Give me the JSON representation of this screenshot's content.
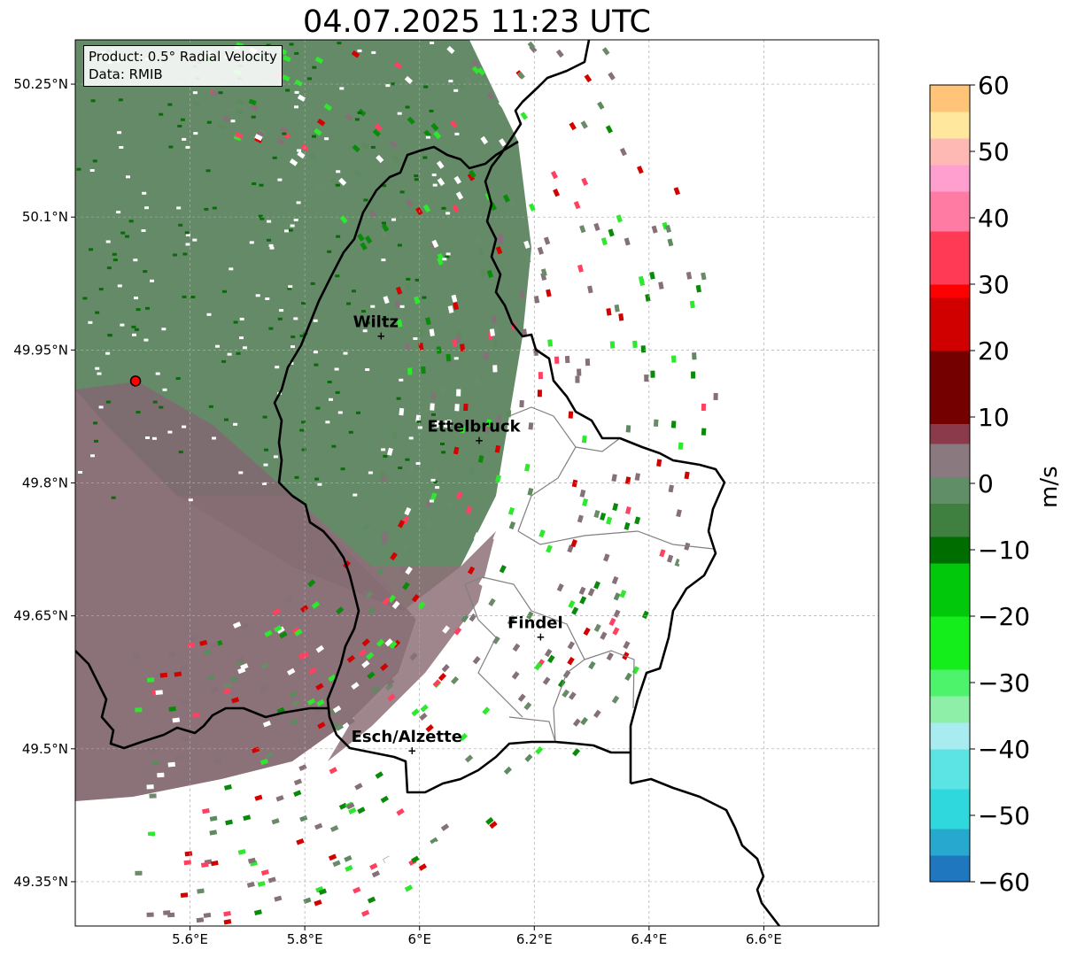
{
  "title": "04.07.2025 11:23 UTC",
  "info": {
    "product": "Product: 0.5° Radial Velocity",
    "source": "Data: RMIB"
  },
  "map": {
    "lon_range": [
      5.4,
      6.8
    ],
    "lat_range": [
      49.3,
      50.3
    ],
    "xticks": [
      5.6,
      5.8,
      6.0,
      6.2,
      6.4,
      6.6
    ],
    "xtick_labels": [
      "5.6°E",
      "5.8°E",
      "6°E",
      "6.2°E",
      "6.4°E",
      "6.6°E"
    ],
    "yticks": [
      50.25,
      50.1,
      49.95,
      49.8,
      49.65,
      49.5,
      49.35
    ],
    "ytick_labels": [
      "50.25°N",
      "50.1°N",
      "49.95°N",
      "49.8°N",
      "49.65°N",
      "49.5°N",
      "49.35°N"
    ],
    "radar_site": {
      "lon": 5.505,
      "lat": 49.915
    },
    "cities": [
      {
        "name": "Wiltz",
        "lon": 5.933,
        "lat": 49.966
      },
      {
        "name": "Ettelbruck",
        "lon": 6.104,
        "lat": 49.848
      },
      {
        "name": "Findel",
        "lon": 6.211,
        "lat": 49.626
      },
      {
        "name": "Esch/Alzette",
        "lon": 5.987,
        "lat": 49.498
      }
    ],
    "grid": true
  },
  "colorbar": {
    "unit": "m/s",
    "min": -60,
    "max": 60,
    "ticks": [
      60,
      50,
      40,
      30,
      20,
      10,
      0,
      -10,
      -20,
      -30,
      -40,
      -50,
      -60
    ],
    "tick_labels": [
      "60",
      "50",
      "40",
      "30",
      "20",
      "10",
      "0",
      "−10",
      "−20",
      "−30",
      "−40",
      "−50",
      "−60"
    ],
    "stops": [
      [
        "-60",
        "#1f77c0"
      ],
      [
        "-56",
        "#26a8cf"
      ],
      [
        "-52",
        "#2ed8dc"
      ],
      [
        "-46",
        "#5ce3e3"
      ],
      [
        "-40",
        "#a8ecef"
      ],
      [
        "-36",
        "#8ef0a8"
      ],
      [
        "-32",
        "#4df36a"
      ],
      [
        "-28",
        "#14ee1a"
      ],
      [
        "-20",
        "#02c80b"
      ],
      [
        "-12",
        "#006d00"
      ],
      [
        "-8",
        "#3f7f3f"
      ],
      [
        "-3",
        "#5f8e67"
      ],
      [
        "1",
        "#8a7a7f"
      ],
      [
        "6",
        "#8a3a4a"
      ],
      [
        "9",
        "#740000"
      ],
      [
        "20",
        "#d00000"
      ],
      [
        "28",
        "#ff0000"
      ],
      [
        "30",
        "#ff3a55"
      ],
      [
        "38",
        "#ff7ba3"
      ],
      [
        "44",
        "#ff9fcf"
      ],
      [
        "48",
        "#ffb9b4"
      ],
      [
        "52",
        "#ffe89e"
      ],
      [
        "56",
        "#ffc478"
      ],
      [
        "60",
        "#ff9e52"
      ]
    ]
  },
  "colors": {
    "receding": "#8a6a72",
    "approaching": "#5e8a5e",
    "border": "#000000",
    "cantons": "#808080"
  }
}
